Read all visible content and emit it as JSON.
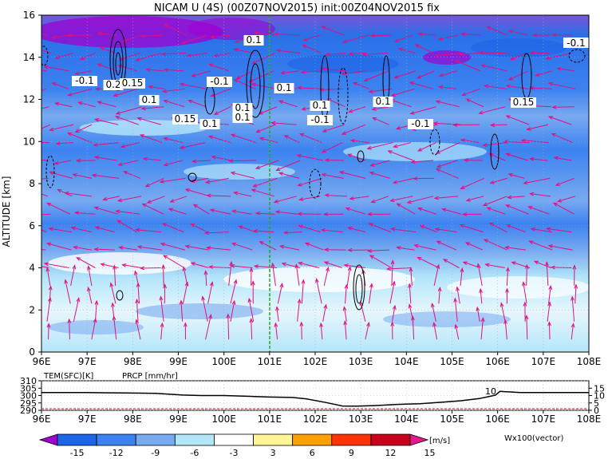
{
  "title": "NICAM U (4S) (00Z07NOV2015) init:00Z04NOV2015 fix",
  "colors": {
    "bg": "#ffffff",
    "vector": "#e0107f",
    "marker_line": "#1aa51a",
    "prcp_text": "#ff0000"
  },
  "chart_data": [
    {
      "type": "heatmap",
      "subtype": "zonal wind cross-section with wind vectors and contours",
      "title": "NICAM U (4S) (00Z07NOV2015) init:00Z04NOV2015 fix",
      "xlabel": "",
      "ylabel": "ALTITUDE [km]",
      "x_ticks": [
        "96E",
        "97E",
        "98E",
        "99E",
        "100E",
        "101E",
        "102E",
        "103E",
        "104E",
        "105E",
        "106E",
        "107E",
        "108E"
      ],
      "x_range": [
        96,
        108
      ],
      "y_ticks": [
        "0",
        "2",
        "4",
        "6",
        "8",
        "10",
        "12",
        "14",
        "16"
      ],
      "y_range": [
        0,
        16
      ],
      "marker_line_lon": 101,
      "grid": true,
      "colorbar": {
        "levels": [
          "-15",
          "-12",
          "-9",
          "-6",
          "-3",
          "3",
          "6",
          "9",
          "12",
          "15"
        ],
        "units": "[m/s]",
        "colors": [
          "#a000d0",
          "#1e64e6",
          "#3c82f0",
          "#78aaf0",
          "#b4e6fa",
          "#ffffff",
          "#fff596",
          "#ffa000",
          "#ff3200",
          "#c8001e",
          "#e6198c"
        ]
      },
      "vector_label": "Wx100(vector)",
      "contour_labels": [
        "0.1",
        "-0.1",
        "0.2",
        "0.15",
        "0.1",
        "-0.1",
        "0.1",
        "0.1",
        "0.15",
        "0.1",
        "0.1",
        "0.1",
        "-0.1",
        "0.1",
        "-0.1",
        "0.15"
      ]
    },
    {
      "type": "line",
      "title": "",
      "left_label": "TEM(SFC)[K]",
      "right_label": "PRCP [mm/hr]",
      "y_left_ticks": [
        "310",
        "305",
        "300",
        "295",
        "290"
      ],
      "y_left_range": [
        290,
        310
      ],
      "y_right_ticks": [
        "15",
        "10",
        "5",
        "0"
      ],
      "y_right_range": [
        0,
        20
      ],
      "x_ticks": [
        "96E",
        "97E",
        "98E",
        "99E",
        "100E",
        "101E",
        "102E",
        "103E",
        "104E",
        "105E",
        "106E",
        "107E",
        "108E"
      ],
      "series": [
        {
          "name": "TEM(SFC)[K]",
          "x": [
            96,
            97,
            98,
            98.5,
            99.1,
            99.5,
            100,
            100.5,
            101,
            101.5,
            101.8,
            102.2,
            102.6,
            102.9,
            103.3,
            103.8,
            104.3,
            104.8,
            105.2,
            105.6,
            105.95,
            106.05,
            106.5,
            107,
            107.5,
            108
          ],
          "y": [
            302,
            302,
            301.7,
            301.5,
            300.3,
            300,
            300,
            299.5,
            299,
            298.7,
            297.8,
            295.5,
            292.9,
            292.8,
            293.2,
            294,
            294.5,
            295.5,
            296.5,
            298,
            300.2,
            302.8,
            302,
            302,
            302,
            302
          ]
        }
      ]
    }
  ]
}
